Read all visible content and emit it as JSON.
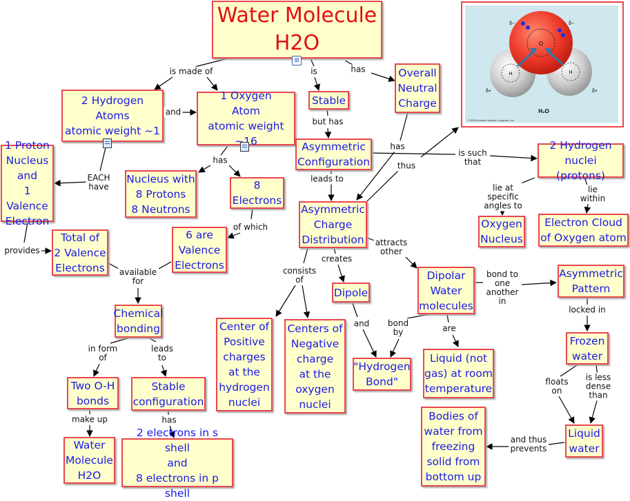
{
  "title": "Water Molecule\nH2O",
  "nodes": {
    "two_h": "2 Hydrogen\nAtoms\natomic weight ~1",
    "one_o": "1 Oxygen\nAtom\natomic weight ~16",
    "stable": "Stable",
    "neutral": "Overall\nNeutral\nCharge",
    "proton": "1 Proton\nNucleus\nand\n1 Valence\nElectron",
    "nucleus": "Nucleus with\n8 Protons\n8 Neutrons",
    "eight_e": "8\nElectrons",
    "asym_config": "Asymmetric\nConfiguration",
    "h_nuclei": "2 Hydrogen\nnuclei (protons)",
    "total": "Total of\n2 Valence\nElectrons",
    "six": "6 are\nValence\nElectrons",
    "asym_dist": "Asymmetric\nCharge\nDistribution",
    "oxy_nucleus": "Oxygen\nNucleus",
    "e_cloud": "Electron Cloud\nof  Oxygen atom",
    "chem": "Chemical\nbonding",
    "dipole": "Dipole",
    "dipolar": "Dipolar\nWater\nmolecules",
    "asym_pattern": "Asymmetric\nPattern",
    "center_pos": "Center of\nPositive\ncharges\nat the\nhydrogen\nnuclei",
    "center_neg": "Centers of\nNegative\ncharge\nat the\noxygen\nnuclei",
    "hbond": "\"Hydrogen\nBond\"",
    "liquid_not_gas": "Liquid (not\ngas) at room\ntemperature",
    "frozen": "Frozen\nwater",
    "two_oh": "Two O-H\nbonds",
    "stable_config": "Stable\nconfiguration",
    "water_mol": "Water\nMolecule\nH2O",
    "electrons": "2 electrons in s shell\nand\n8 electrons in p shell",
    "bodies": "Bodies of\nwater from\nfreezing\nsolid from\nbottom up",
    "liquid": "Liquid\nwater"
  },
  "links": {
    "is_made_of": "is made of",
    "is": "is",
    "has": "has",
    "and": "and",
    "but_has": "but has",
    "has2": "has",
    "has3": "has",
    "is_such_that": "is such\nthat",
    "each_have": "EACH\nhave",
    "thus": "thus",
    "leads_to": "leads to",
    "lie_at": "lie at\nspecific\nangles to",
    "lie_within": "lie within",
    "of_which": "of which",
    "provides": "provides",
    "available_for": "available\nfor",
    "consists_of": "consists\nof",
    "creates": "creates",
    "attracts_other": "attracts\nother",
    "bond_to": "bond to\none\nanother\nin",
    "locked_in": "locked in",
    "and2": "and",
    "bond_by": "bond\nby",
    "are": "are",
    "in_form_of": "in form\nof",
    "leads_to2": "leads\nto",
    "floats_on": "floats\non",
    "is_less_dense": "is less\ndense than",
    "make_up": "make up",
    "has4": "has",
    "and_thus_prevents": "and thus\nprevents"
  },
  "molecule_image": {
    "labels": {
      "o": "O",
      "h_left": "H",
      "h_right": "H",
      "delta_minus_1": "δ−",
      "delta_minus_2": "δ−",
      "delta_plus_1": "δ+",
      "delta_plus_2": "δ+",
      "formula": "H₂O"
    },
    "credit": "©1999 Addison Wesley Longman, Inc.",
    "colors": {
      "oxygen": "#ee3b2c",
      "hydrogen": "#c8c8c8",
      "background": "#cfe7ef"
    }
  },
  "colors": {
    "node_fill": "#ffffcc",
    "node_border": "#e8474f",
    "node_text": "#1a1ae6",
    "title_text": "#e01010"
  }
}
